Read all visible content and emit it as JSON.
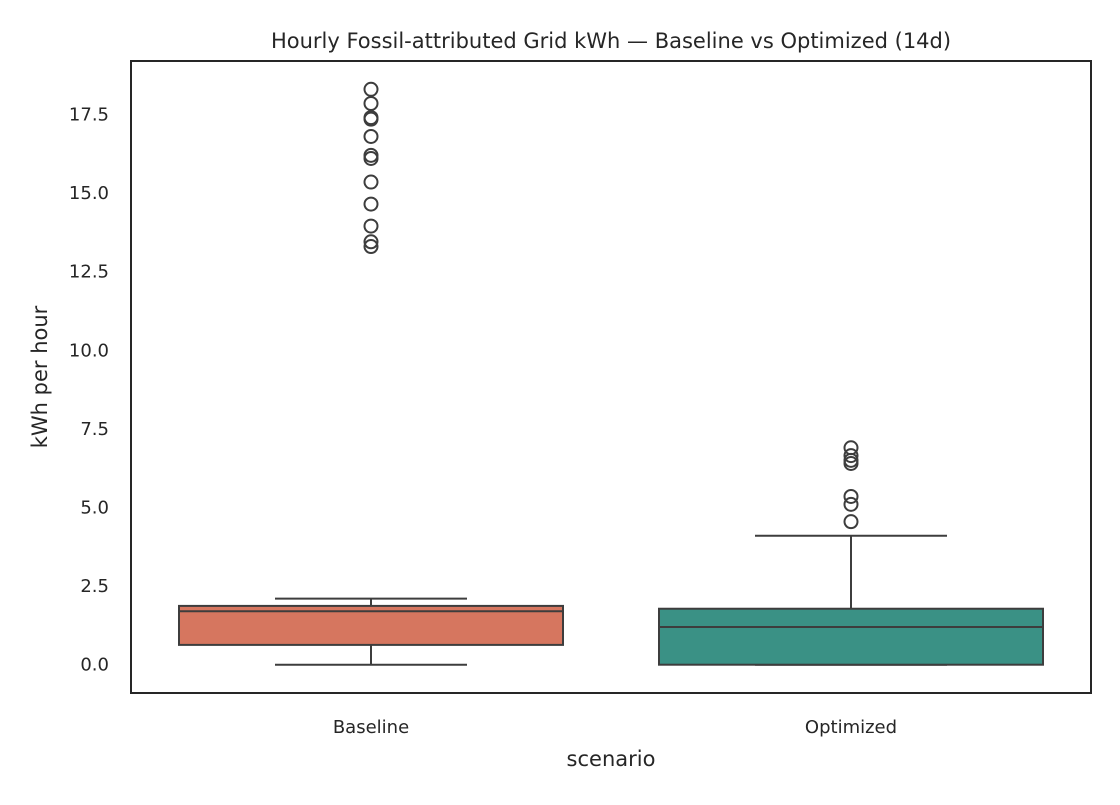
{
  "chart_data": {
    "type": "box",
    "title": "Hourly Fossil-attributed Grid kWh — Baseline vs Optimized (14d)",
    "xlabel": "scenario",
    "ylabel": "kWh per hour",
    "ylim": [
      -0.9,
      19.2
    ],
    "yticks": [
      0.0,
      2.5,
      5.0,
      7.5,
      10.0,
      12.5,
      15.0,
      17.5
    ],
    "ytick_labels": [
      "0.0",
      "2.5",
      "5.0",
      "7.5",
      "10.0",
      "12.5",
      "15.0",
      "17.5"
    ],
    "grid": false,
    "categories": [
      "Baseline",
      "Optimized"
    ],
    "boxes": [
      {
        "name": "Baseline",
        "color": "#d6765f",
        "whisker_low": 0.0,
        "q1": 0.63,
        "median": 1.7,
        "q3": 1.87,
        "whisker_high": 2.1,
        "outliers": [
          13.3,
          13.45,
          13.95,
          14.65,
          15.35,
          16.1,
          16.2,
          16.8,
          17.35,
          17.4,
          17.85,
          18.3
        ]
      },
      {
        "name": "Optimized",
        "color": "#3a9185",
        "whisker_low": 0.0,
        "q1": 0.0,
        "median": 1.2,
        "q3": 1.78,
        "whisker_high": 4.1,
        "outliers": [
          4.55,
          5.1,
          5.35,
          6.4,
          6.5,
          6.65,
          6.9
        ]
      }
    ]
  }
}
